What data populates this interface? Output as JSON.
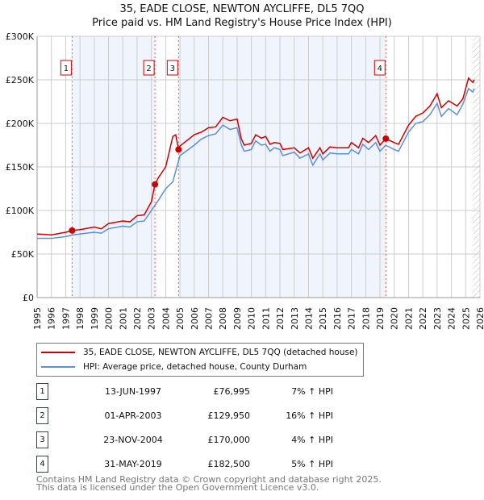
{
  "chart_data": {
    "type": "line",
    "title": "35, EADE CLOSE, NEWTON AYCLIFFE, DL5 7QQ",
    "subtitle": "Price paid vs. HM Land Registry's House Price Index (HPI)",
    "xlim": [
      1995,
      2026
    ],
    "ylim": [
      0,
      300000
    ],
    "yticks": [
      0,
      50000,
      100000,
      150000,
      200000,
      250000,
      300000
    ],
    "ytick_labels": [
      "£0",
      "£50K",
      "£100K",
      "£150K",
      "£200K",
      "£250K",
      "£300K"
    ],
    "xticks": [
      "1995",
      "1996",
      "1997",
      "1998",
      "1999",
      "2000",
      "2001",
      "2002",
      "2003",
      "2004",
      "2005",
      "2006",
      "2007",
      "2008",
      "2009",
      "2010",
      "2011",
      "2012",
      "2013",
      "2014",
      "2015",
      "2016",
      "2017",
      "2018",
      "2019",
      "2020",
      "2021",
      "2022",
      "2023",
      "2024",
      "2025",
      "2026"
    ],
    "grid": true,
    "series": [
      {
        "name": "35, EADE CLOSE, NEWTON AYCLIFFE, DL5 7QQ (detached house)",
        "color": "#cc0000",
        "x": [
          1995,
          1996,
          1997,
          1997.45,
          1998,
          1999,
          1999.5,
          2000,
          2001,
          2001.5,
          2002,
          2002.5,
          2003,
          2003.25,
          2003.5,
          2004,
          2004.5,
          2004.7,
          2004.9,
          2005,
          2006,
          2006.5,
          2007,
          2007.5,
          2008,
          2008.5,
          2009,
          2009.3,
          2009.5,
          2010,
          2010.3,
          2010.7,
          2011,
          2011.3,
          2011.6,
          2012,
          2012.2,
          2013,
          2013.4,
          2014,
          2014.3,
          2014.8,
          2015,
          2015.5,
          2016,
          2016.8,
          2017,
          2017.5,
          2017.8,
          2018.2,
          2018.7,
          2019,
          2019.4,
          2020,
          2020.3,
          2021,
          2021.5,
          2022,
          2022.5,
          2023,
          2023.3,
          2023.8,
          2024.4,
          2024.8,
          2025.2,
          2025.5,
          2025.6
        ],
        "y": [
          73000,
          72000,
          75000,
          76995,
          78000,
          81000,
          79000,
          85000,
          88000,
          87000,
          94000,
          95000,
          110000,
          129950,
          138000,
          150000,
          185000,
          187000,
          170000,
          174000,
          187000,
          190000,
          195000,
          196000,
          207000,
          203000,
          205000,
          182000,
          175000,
          177000,
          187000,
          183000,
          185000,
          176000,
          178000,
          177000,
          170000,
          172000,
          166000,
          172000,
          160000,
          172000,
          165000,
          173000,
          172000,
          172000,
          178000,
          172000,
          183000,
          178000,
          186000,
          175000,
          182500,
          178000,
          176000,
          198000,
          208000,
          212000,
          220000,
          234000,
          218000,
          226000,
          220000,
          228000,
          252000,
          247000,
          250000
        ]
      },
      {
        "name": "HPI: Average price, detached house, County Durham",
        "color": "#5b8fd6",
        "x": [
          1995,
          1996,
          1997,
          1997.5,
          1998,
          1999,
          1999.5,
          2000,
          2001,
          2001.5,
          2002,
          2002.5,
          2003,
          2003.5,
          2004,
          2004.5,
          2005,
          2006,
          2006.5,
          2007,
          2007.5,
          2008,
          2008.5,
          2009,
          2009.3,
          2009.5,
          2010,
          2010.3,
          2010.7,
          2011,
          2011.3,
          2011.6,
          2012,
          2012.2,
          2013,
          2013.4,
          2014,
          2014.3,
          2014.8,
          2015,
          2015.5,
          2016,
          2016.8,
          2017,
          2017.5,
          2017.8,
          2018.2,
          2018.7,
          2019,
          2019.4,
          2020,
          2020.3,
          2021,
          2021.5,
          2022,
          2022.5,
          2023,
          2023.3,
          2023.8,
          2024.4,
          2024.8,
          2025.2,
          2025.5,
          2025.6
        ],
        "y": [
          68000,
          68000,
          70000,
          72000,
          73000,
          75000,
          74000,
          79000,
          82000,
          81000,
          87000,
          88000,
          100000,
          112000,
          125000,
          133000,
          163000,
          175000,
          182000,
          186000,
          188000,
          198000,
          193000,
          195000,
          175000,
          168000,
          170000,
          180000,
          175000,
          176000,
          168000,
          172000,
          170000,
          163000,
          167000,
          160000,
          165000,
          152000,
          165000,
          158000,
          166000,
          165000,
          165000,
          170000,
          165000,
          176000,
          170000,
          178000,
          168000,
          175000,
          170000,
          168000,
          190000,
          200000,
          202000,
          210000,
          223000,
          208000,
          217000,
          210000,
          222000,
          240000,
          236000,
          240000
        ]
      }
    ],
    "sales": [
      {
        "label": "1",
        "x": 1997.45,
        "y": 76995,
        "date": "13-JUN-1997",
        "price": "£76,995",
        "hpi": "7% ↑ HPI"
      },
      {
        "label": "2",
        "x": 2003.25,
        "y": 129950,
        "date": "01-APR-2003",
        "price": "£129,950",
        "hpi": "16% ↑ HPI"
      },
      {
        "label": "3",
        "x": 2004.9,
        "y": 170000,
        "date": "23-NOV-2004",
        "price": "£170,000",
        "hpi": "4% ↑ HPI"
      },
      {
        "label": "4",
        "x": 2019.41,
        "y": 182500,
        "date": "31-MAY-2019",
        "price": "£182,500",
        "hpi": "5% ↑ HPI"
      }
    ],
    "legend_placement": "bottom"
  },
  "footer": {
    "line1": "Contains HM Land Registry data © Crown copyright and database right 2025.",
    "line2": "This data is licensed under the Open Government Licence v3.0."
  }
}
